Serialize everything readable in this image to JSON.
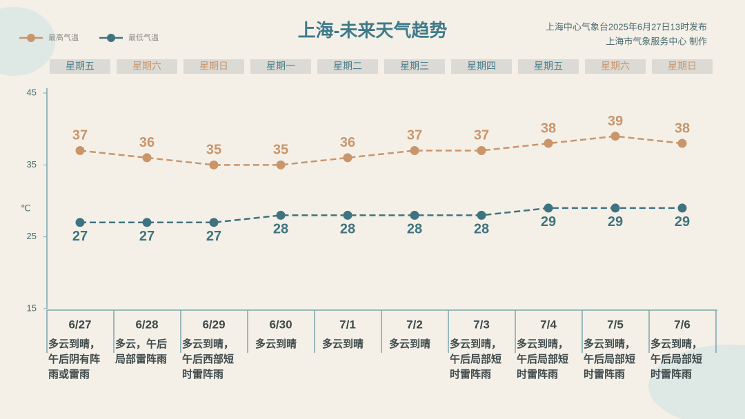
{
  "chart_data": {
    "type": "line",
    "title": "上海-未来天气趋势",
    "source": [
      "上海中心气象台2025年6月27日13时发布",
      "上海市气象服务中心 制作"
    ],
    "unit": "℃",
    "categories": [
      "6/27",
      "6/28",
      "6/29",
      "6/30",
      "7/1",
      "7/2",
      "7/3",
      "7/4",
      "7/5",
      "7/6"
    ],
    "weekdays": [
      "星期五",
      "星期六",
      "星期日",
      "星期一",
      "星期二",
      "星期三",
      "星期四",
      "星期五",
      "星期六",
      "星期日"
    ],
    "weekday_colors": [
      "#4a7f8c",
      "#c9956b",
      "#c9956b",
      "#4a7f8c",
      "#4a7f8c",
      "#4a7f8c",
      "#4a7f8c",
      "#4a7f8c",
      "#c9956b",
      "#c9956b"
    ],
    "descriptions": [
      "多云到晴，午后阴有阵雨或雷雨",
      "多云，午后局部雷阵雨",
      "多云到晴，午后西部短时雷阵雨",
      "多云到晴",
      "多云到晴",
      "多云到晴",
      "多云到晴，午后局部短时雷阵雨",
      "多云到晴，午后局部短时雷阵雨",
      "多云到晴，午后局部短时雷阵雨",
      "多云到晴，午后局部短时雷阵雨"
    ],
    "series": [
      {
        "name": "最高气温",
        "color": "#c9956b",
        "values": [
          37,
          36,
          35,
          35,
          36,
          37,
          37,
          38,
          39,
          38
        ]
      },
      {
        "name": "最低气温",
        "color": "#3f7380",
        "values": [
          27,
          27,
          27,
          28,
          28,
          28,
          28,
          29,
          29,
          29
        ]
      }
    ],
    "ylim": [
      15,
      45
    ],
    "yticks": [
      15,
      25,
      35,
      45
    ]
  }
}
